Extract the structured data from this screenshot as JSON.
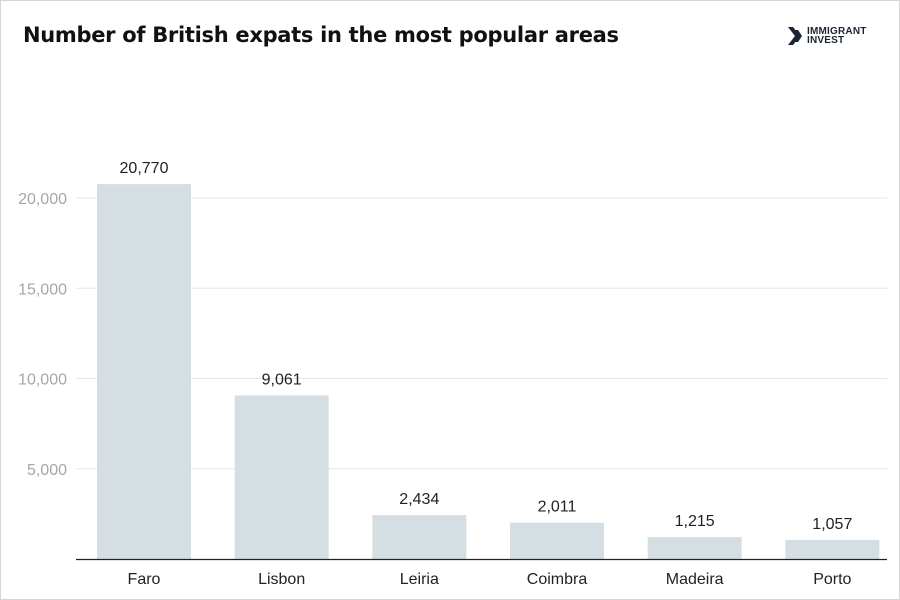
{
  "header": {
    "title": "Number of British expats in the most popular areas",
    "logo_line1": "IMMIGRANT",
    "logo_line2": "INVEST"
  },
  "colors": {
    "bar": "#d5dfe3",
    "grid": "#e6e6e6",
    "axis": "#222222",
    "logo": "#1b2433"
  },
  "chart_data": {
    "type": "bar",
    "title": "Number of British expats in the most popular areas",
    "categories": [
      "Faro",
      "Lisbon",
      "Leiria",
      "Coimbra",
      "Madeira",
      "Porto"
    ],
    "values": [
      20770,
      9061,
      2434,
      2011,
      1215,
      1057
    ],
    "value_labels": [
      "20,770",
      "9,061",
      "2,434",
      "2,011",
      "1,215",
      "1,057"
    ],
    "yticks": [
      5000,
      10000,
      15000,
      20000
    ],
    "ytick_labels": [
      "5,000",
      "10,000",
      "15,000",
      "20,000"
    ],
    "ylim": [
      0,
      20000
    ],
    "xlabel": "",
    "ylabel": "",
    "grid": true,
    "legend": "none"
  }
}
